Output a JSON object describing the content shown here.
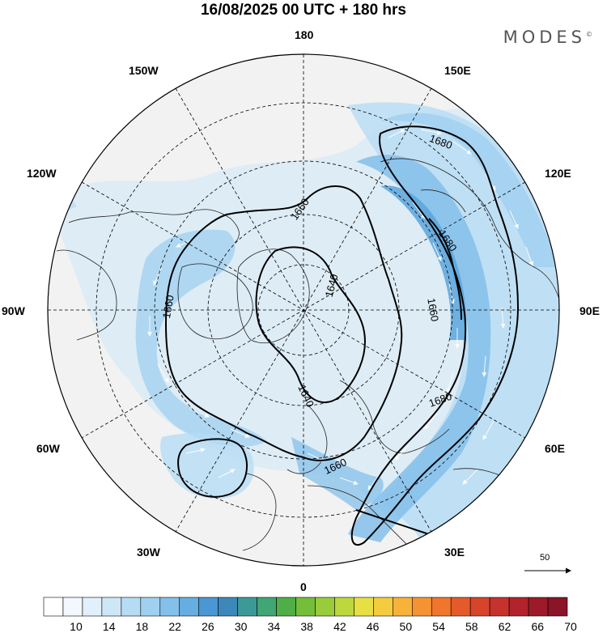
{
  "header": {
    "title": "16/08/2025  00 UTC  + 180 hrs",
    "brand": "MODES",
    "brand_mark": "©"
  },
  "map": {
    "projection": "north-polar-stereographic",
    "longitude_labels": [
      "180",
      "150E",
      "120E",
      "90E",
      "60E",
      "30E",
      "0",
      "30W",
      "60W",
      "90W",
      "120W",
      "150W"
    ],
    "contour_labels": [
      "1640",
      "1640",
      "1660",
      "1660",
      "1660",
      "1660",
      "1680",
      "1680",
      "1680",
      "1680"
    ],
    "reference_vector": "50",
    "colors": {
      "land": "#f2f2f2",
      "coast": "#222222",
      "contour": "#000000",
      "wind_light": "#cde7f7",
      "wind_mid": "#9fd0f0",
      "wind_strong": "#5aa6dc",
      "arrow": "#ffffff"
    }
  },
  "colorbar": {
    "labels": [
      "10",
      "14",
      "18",
      "22",
      "26",
      "30",
      "34",
      "38",
      "42",
      "46",
      "50",
      "54",
      "58",
      "62",
      "66",
      "70"
    ],
    "colors": [
      "#ffffff",
      "#f2f8fd",
      "#e1f0fb",
      "#cde7f7",
      "#b6dcf4",
      "#9fd0f0",
      "#84c0ea",
      "#66aee2",
      "#4a97d3",
      "#3c88b8",
      "#3b9a98",
      "#3fa674",
      "#4fae48",
      "#74be3a",
      "#98cc3a",
      "#bcd83e",
      "#e6e045",
      "#f4cc40",
      "#f7b23a",
      "#f59333",
      "#f0752d",
      "#e45a2a",
      "#d6442a",
      "#c6322c",
      "#b2232c",
      "#9d1a2a",
      "#8a1428"
    ]
  }
}
